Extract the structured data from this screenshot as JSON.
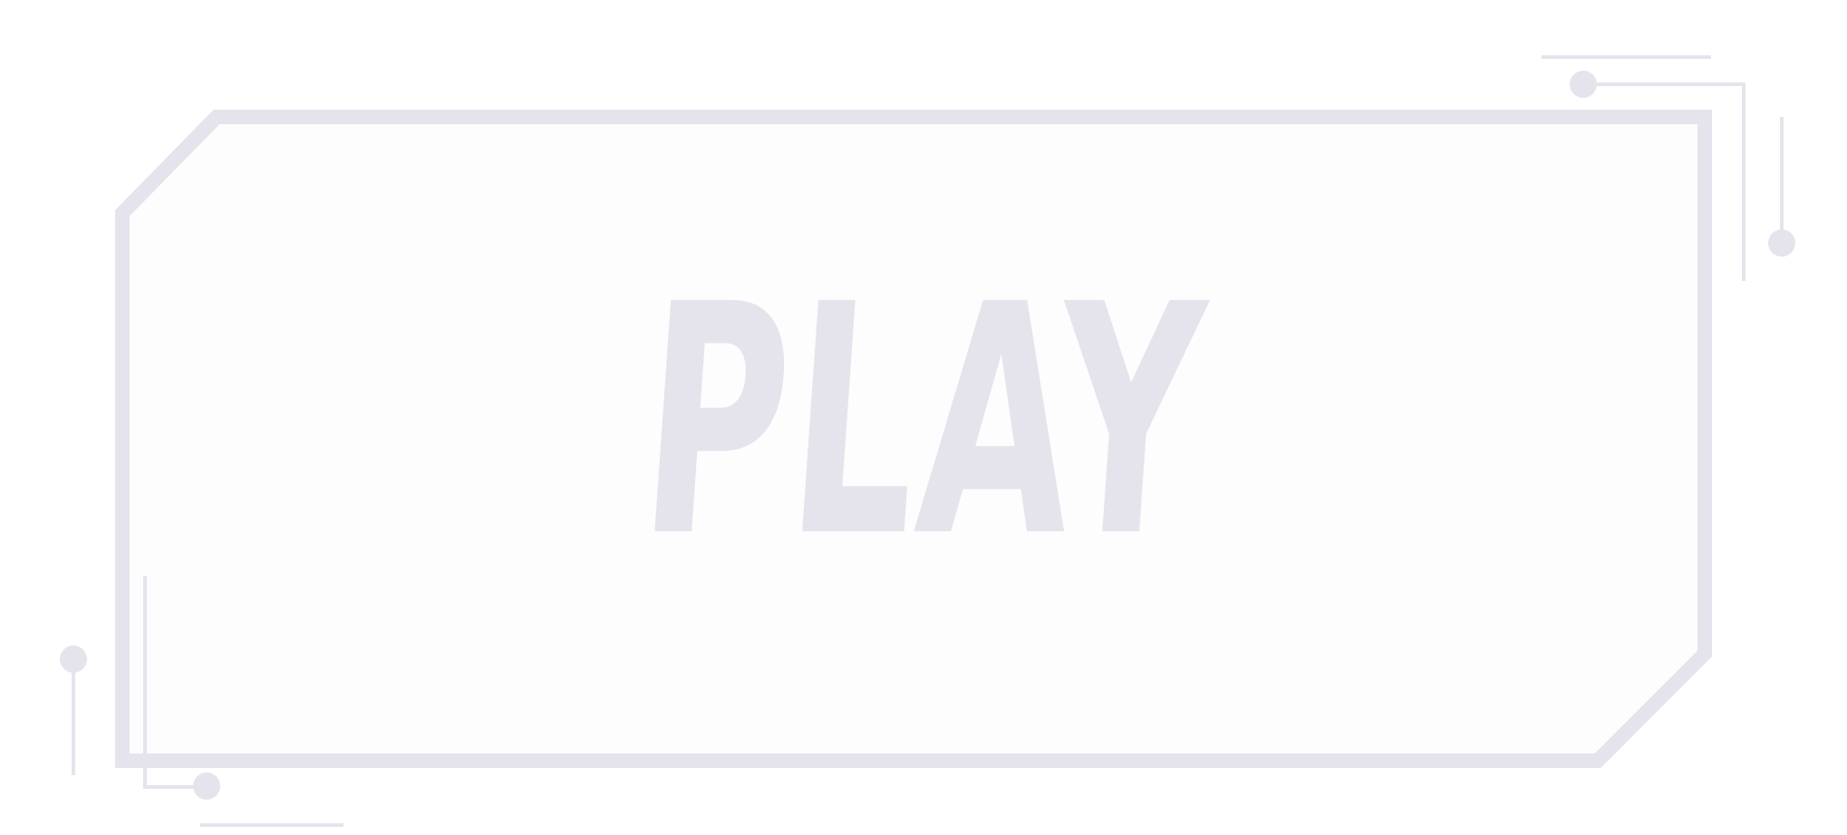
{
  "button": {
    "label": "PLAY"
  },
  "colors": {
    "frame": "#e5e4ec",
    "panel_fill": "#fdfdfd",
    "label": "#e5e4ec",
    "background": "#ffffff"
  },
  "icons": {
    "corner_decoration": "circuit-node-icon"
  }
}
